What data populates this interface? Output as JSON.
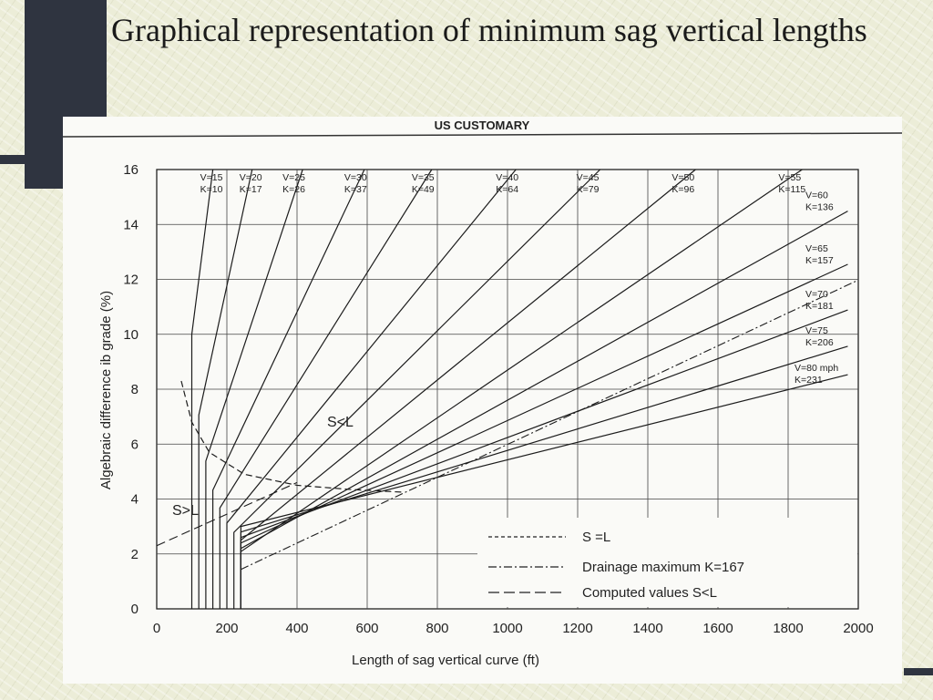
{
  "slide": {
    "title": "Graphical representation of minimum sag vertical lengths"
  },
  "chart_data": {
    "type": "line",
    "title": "US CUSTOMARY",
    "xlabel": "Length of sag vertical curve (ft)",
    "ylabel": "Algebraic difference ib grade (%)",
    "xlim": [
      0,
      2000
    ],
    "ylim": [
      0,
      16
    ],
    "xticks": [
      "0",
      "200",
      "400",
      "600",
      "800",
      "1000",
      "1200",
      "1400",
      "1600",
      "1800",
      "2000"
    ],
    "yticks": [
      "0",
      "2",
      "4",
      "6",
      "8",
      "10",
      "12",
      "14",
      "16"
    ],
    "grid": true,
    "series": [
      {
        "speed": "V=15",
        "k": "K=10",
        "K": 10,
        "Lmin": 100
      },
      {
        "speed": "V=20",
        "k": "K=17",
        "K": 17,
        "Lmin": 120
      },
      {
        "speed": "V=25",
        "k": "K=26",
        "K": 26,
        "Lmin": 140
      },
      {
        "speed": "V=30",
        "k": "K=37",
        "K": 37,
        "Lmin": 160
      },
      {
        "speed": "V=35",
        "k": "K=49",
        "K": 49,
        "Lmin": 180
      },
      {
        "speed": "V=40",
        "k": "K=64",
        "K": 64,
        "Lmin": 200
      },
      {
        "speed": "V=45",
        "k": "K=79",
        "K": 79,
        "Lmin": 220
      },
      {
        "speed": "V=50",
        "k": "K=96",
        "K": 96,
        "Lmin": 240
      },
      {
        "speed": "V=55",
        "k": "K=115",
        "K": 115,
        "Lmin": 240
      },
      {
        "speed": "V=60",
        "k": "K=136",
        "K": 136,
        "Lmin": 240
      },
      {
        "speed": "V=65",
        "k": "K=157",
        "K": 157,
        "Lmin": 240
      },
      {
        "speed": "V=70",
        "k": "K=181",
        "K": 181,
        "Lmin": 240
      },
      {
        "speed": "V=75",
        "k": "K=206",
        "K": 206,
        "Lmin": 240
      },
      {
        "speed": "V=80 mph",
        "k": "K=231",
        "K": 231,
        "Lmin": 240
      }
    ],
    "drainage": {
      "K": 167
    },
    "s_equals_l_curve": [
      [
        70,
        8.3
      ],
      [
        100,
        6.8
      ],
      [
        150,
        5.7
      ],
      [
        250,
        4.9
      ],
      [
        400,
        4.5
      ],
      [
        550,
        4.35
      ],
      [
        700,
        4.25
      ]
    ],
    "computed_values_line": [
      [
        0,
        2.3
      ],
      [
        400,
        4.6
      ]
    ],
    "annotations": {
      "s_less_l": "S<L",
      "s_greater_l": "S>L"
    },
    "legend": {
      "position": "bottom-right",
      "items": [
        {
          "label": "S =L",
          "style": "dashed"
        },
        {
          "label": "Drainage maximum K=167",
          "style": "dash-dot"
        },
        {
          "label": "Computed values S<L",
          "style": "long-dash"
        }
      ]
    }
  }
}
